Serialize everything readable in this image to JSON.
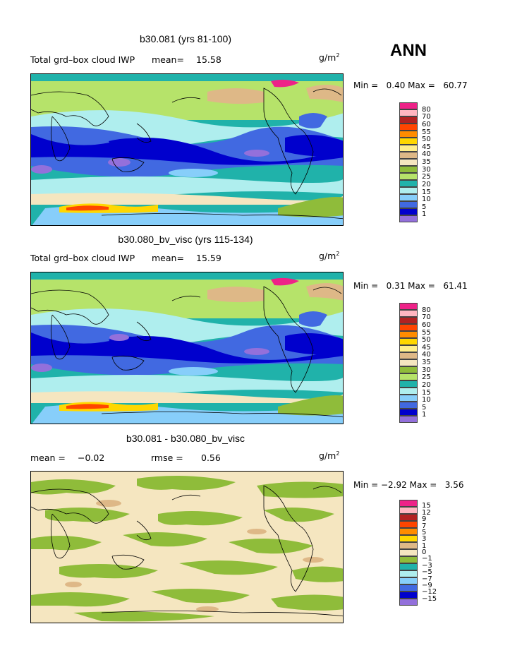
{
  "season": "ANN",
  "panels": [
    {
      "title": "b30.081 (yrs 81-100)",
      "left_label": "Total grd–box cloud IWP",
      "mean_label": "mean=",
      "mean_value": "15.58",
      "units": "g/m",
      "units_sup": "2",
      "min_label": "Min =",
      "min_value": "0.40",
      "max_label": "Max =",
      "max_value": "60.77",
      "legend_labels": [
        "80",
        "70",
        "60",
        "55",
        "50",
        "45",
        "40",
        "35",
        "30",
        "25",
        "20",
        "15",
        "10",
        "5",
        "1"
      ]
    },
    {
      "title": "b30.080_bv_visc (yrs 115-134)",
      "left_label": "Total grd–box cloud IWP",
      "mean_label": "mean=",
      "mean_value": "15.59",
      "units": "g/m",
      "units_sup": "2",
      "min_label": "Min =",
      "min_value": "0.31",
      "max_label": "Max =",
      "max_value": "61.41",
      "legend_labels": [
        "80",
        "70",
        "60",
        "55",
        "50",
        "45",
        "40",
        "35",
        "30",
        "25",
        "20",
        "15",
        "10",
        "5",
        "1"
      ]
    },
    {
      "title": "b30.081 - b30.080_bv_visc",
      "left_label": "mean =",
      "mean_label": "",
      "mean_value": "−0.02",
      "rmse_label": "rmse =",
      "rmse_value": "0.56",
      "units": "g/m",
      "units_sup": "2",
      "min_label": "Min =",
      "min_value": "−2.92",
      "max_label": "Max =",
      "max_value": "3.56",
      "legend_labels": [
        "15",
        "12",
        "9",
        "7",
        "5",
        "3",
        "1",
        "0",
        "−1",
        "−3",
        "−5",
        "−7",
        "−9",
        "−12",
        "−15"
      ]
    }
  ],
  "colors": {
    "abs_scale": [
      "#ee2288",
      "#ffb6c1",
      "#b22222",
      "#ff4500",
      "#ff8c00",
      "#ffd700",
      "#ffef8a",
      "#deb887",
      "#f5e6c0",
      "#8fbc3a",
      "#b6e36a",
      "#20b2aa",
      "#afeeee",
      "#87cefa",
      "#4169e1",
      "#0000cd",
      "#9370db"
    ],
    "diff_scale": [
      "#ee2288",
      "#ffb6c1",
      "#b22222",
      "#ff4500",
      "#ff8c00",
      "#ffd700",
      "#deb887",
      "#f5e6c0",
      "#8fbc3a",
      "#20b2aa",
      "#afeeee",
      "#87cefa",
      "#4169e1",
      "#0000cd",
      "#9370db"
    ]
  }
}
